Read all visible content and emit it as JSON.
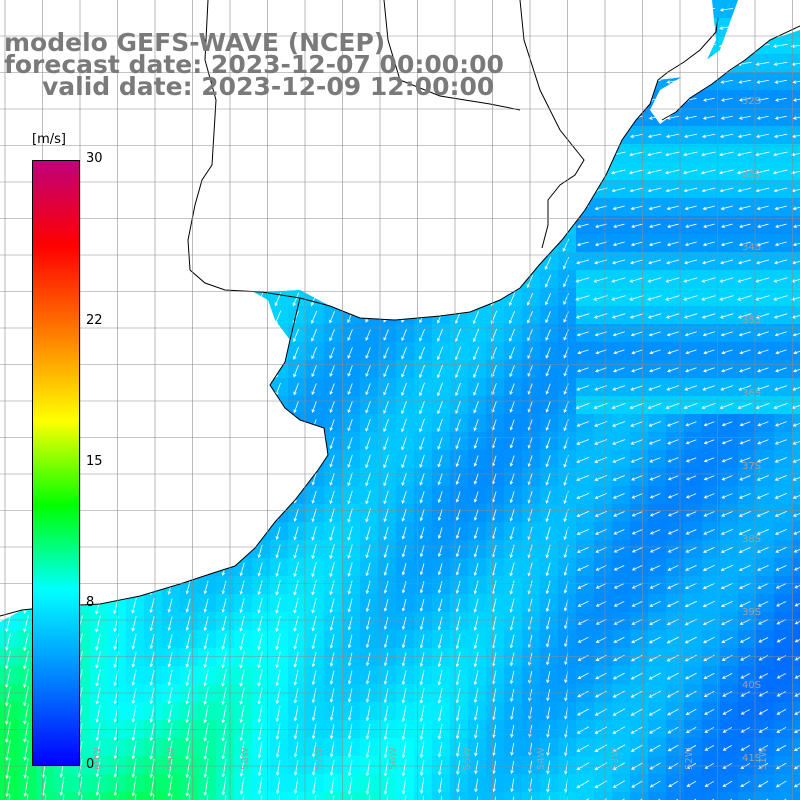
{
  "title": {
    "line1": "modelo GEFS-WAVE (NCEP)",
    "line2": "forecast date: 2023-12-07 00:00:00",
    "line3": "valid date: 2023-12-09 12:00:00"
  },
  "colorbar": {
    "unit": "[m/s]",
    "ticks": [
      "30",
      "22",
      "15",
      "8",
      "0"
    ],
    "tick_values": [
      30,
      22,
      15,
      8,
      0
    ],
    "range": [
      0,
      30
    ],
    "colors": [
      "#0000ff",
      "#0080ff",
      "#00ffff",
      "#00ff00",
      "#ffff00",
      "#ff8000",
      "#ff0000",
      "#c0007a"
    ]
  },
  "map": {
    "land_color": "#ffffff",
    "coast_color": "#000000",
    "grid_color": "#8c8c8c",
    "lat_labels": [
      "32S",
      "33S",
      "34S",
      "35S",
      "36S",
      "37S",
      "38S",
      "39S",
      "40S",
      "41S"
    ],
    "lon_labels": [
      "60W",
      "59W",
      "58W",
      "57W",
      "56W",
      "55W",
      "54W",
      "53W",
      "52W",
      "51W"
    ]
  }
}
